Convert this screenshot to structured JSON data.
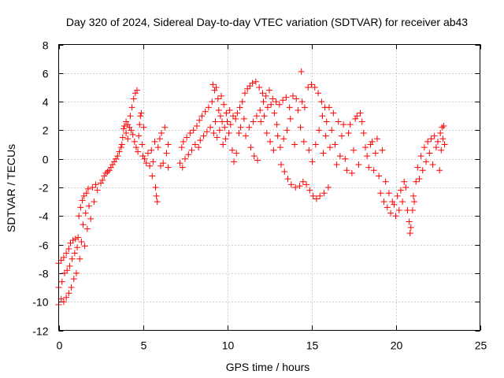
{
  "chart_data": {
    "type": "scatter",
    "title": "Day 320 of 2024, Sidereal Day-to-day VTEC variation (SDTVAR) for receiver ab43",
    "xlabel": "GPS time / hours",
    "ylabel": "SDTVAR / TECUs",
    "xlim": [
      0,
      25
    ],
    "ylim": [
      -12,
      8
    ],
    "xticks": [
      0,
      5,
      10,
      15,
      20,
      25
    ],
    "yticks": [
      -12,
      -10,
      -8,
      -6,
      -4,
      -2,
      0,
      2,
      4,
      6,
      8
    ],
    "xtick_labels": [
      "0",
      "5",
      "10",
      "15",
      "20",
      "25"
    ],
    "ytick_labels": [
      "-12",
      "-10",
      "-8",
      "-6",
      "-4",
      "-2",
      "0",
      "2",
      "4",
      "6",
      "8"
    ],
    "grid": true,
    "legend": "none",
    "marker": "+",
    "color": "#ff0000",
    "series": [
      {
        "name": "SDTVAR",
        "points": [
          [
            0.0,
            -7.3
          ],
          [
            0.0,
            -9.0
          ],
          [
            0.0,
            -10.2
          ],
          [
            0.15,
            -7.1
          ],
          [
            0.15,
            -9.8
          ],
          [
            0.2,
            -8.6
          ],
          [
            0.3,
            -6.9
          ],
          [
            0.3,
            -10.0
          ],
          [
            0.35,
            -8.0
          ],
          [
            0.45,
            -6.6
          ],
          [
            0.45,
            -9.7
          ],
          [
            0.5,
            -7.8
          ],
          [
            0.6,
            -6.3
          ],
          [
            0.6,
            -9.4
          ],
          [
            0.65,
            -7.5
          ],
          [
            0.7,
            -5.9
          ],
          [
            0.75,
            -9.0
          ],
          [
            0.8,
            -7.0
          ],
          [
            0.85,
            -5.7
          ],
          [
            0.9,
            -8.4
          ],
          [
            0.95,
            -6.6
          ],
          [
            1.0,
            -5.6
          ],
          [
            1.05,
            -8.0
          ],
          [
            1.1,
            -6.2
          ],
          [
            1.15,
            -5.5
          ],
          [
            1.2,
            -4.0
          ],
          [
            1.25,
            -7.0
          ],
          [
            1.3,
            -3.4
          ],
          [
            1.35,
            -5.8
          ],
          [
            1.4,
            -2.9
          ],
          [
            1.45,
            -4.6
          ],
          [
            1.5,
            -2.6
          ],
          [
            1.55,
            -6.1
          ],
          [
            1.6,
            -3.8
          ],
          [
            1.65,
            -2.4
          ],
          [
            1.7,
            -4.9
          ],
          [
            1.75,
            -2.1
          ],
          [
            1.8,
            -3.3
          ],
          [
            1.9,
            -4.2
          ],
          [
            2.0,
            -2.0
          ],
          [
            2.1,
            -3.0
          ],
          [
            2.2,
            -1.8
          ],
          [
            2.3,
            -2.2
          ],
          [
            2.5,
            -1.7
          ],
          [
            2.6,
            -1.5
          ],
          [
            2.7,
            -1.2
          ],
          [
            2.8,
            -1.0
          ],
          [
            2.9,
            -0.9
          ],
          [
            3.0,
            -0.8
          ],
          [
            3.1,
            -0.6
          ],
          [
            3.2,
            -0.4
          ],
          [
            3.3,
            -0.2
          ],
          [
            3.4,
            0.0
          ],
          [
            3.5,
            0.2
          ],
          [
            3.6,
            0.5
          ],
          [
            3.7,
            0.8
          ],
          [
            3.75,
            1.0
          ],
          [
            3.8,
            1.5
          ],
          [
            3.85,
            2.1
          ],
          [
            3.9,
            2.3
          ],
          [
            4.0,
            1.8
          ],
          [
            4.0,
            2.6
          ],
          [
            4.1,
            1.4
          ],
          [
            4.1,
            2.4
          ],
          [
            4.2,
            2.2
          ],
          [
            4.25,
            3.0
          ],
          [
            4.3,
            2.0
          ],
          [
            4.35,
            3.6
          ],
          [
            4.4,
            1.7
          ],
          [
            4.45,
            4.2
          ],
          [
            4.5,
            1.2
          ],
          [
            4.55,
            4.6
          ],
          [
            4.6,
            0.8
          ],
          [
            4.65,
            4.8
          ],
          [
            4.7,
            0.5
          ],
          [
            4.75,
            1.6
          ],
          [
            4.8,
            2.4
          ],
          [
            4.85,
            3.0
          ],
          [
            4.9,
            3.2
          ],
          [
            4.95,
            1.0
          ],
          [
            5.0,
            0.2
          ],
          [
            5.05,
            2.2
          ],
          [
            5.1,
            0.0
          ],
          [
            5.2,
            -0.3
          ],
          [
            5.3,
            0.4
          ],
          [
            5.4,
            -0.5
          ],
          [
            5.5,
            0.6
          ],
          [
            5.55,
            -1.2
          ],
          [
            5.6,
            -0.2
          ],
          [
            5.7,
            1.2
          ],
          [
            5.75,
            -2.0
          ],
          [
            5.8,
            -2.6
          ],
          [
            5.85,
            -3.0
          ],
          [
            5.9,
            0.8
          ],
          [
            6.0,
            1.4
          ],
          [
            6.05,
            -0.5
          ],
          [
            6.1,
            1.8
          ],
          [
            6.2,
            -0.3
          ],
          [
            6.3,
            2.2
          ],
          [
            6.4,
            0.4
          ],
          [
            6.5,
            1.0
          ],
          [
            6.5,
            -0.6
          ],
          [
            7.2,
            -0.3
          ],
          [
            7.3,
            0.8
          ],
          [
            7.35,
            -0.6
          ],
          [
            7.4,
            1.2
          ],
          [
            7.5,
            0.0
          ],
          [
            7.6,
            1.5
          ],
          [
            7.7,
            0.3
          ],
          [
            7.8,
            1.8
          ],
          [
            7.9,
            0.6
          ],
          [
            8.0,
            2.0
          ],
          [
            8.1,
            1.0
          ],
          [
            8.2,
            2.3
          ],
          [
            8.3,
            0.8
          ],
          [
            8.35,
            2.7
          ],
          [
            8.4,
            1.3
          ],
          [
            8.5,
            3.0
          ],
          [
            8.6,
            1.6
          ],
          [
            8.7,
            3.3
          ],
          [
            8.8,
            1.9
          ],
          [
            8.9,
            3.6
          ],
          [
            9.0,
            2.2
          ],
          [
            9.1,
            4.0
          ],
          [
            9.15,
            5.2
          ],
          [
            9.2,
            1.8
          ],
          [
            9.25,
            4.8
          ],
          [
            9.3,
            2.6
          ],
          [
            9.35,
            5.0
          ],
          [
            9.4,
            1.5
          ],
          [
            9.45,
            4.2
          ],
          [
            9.5,
            3.4
          ],
          [
            9.55,
            2.0
          ],
          [
            9.6,
            3.0
          ],
          [
            9.65,
            4.4
          ],
          [
            9.7,
            2.6
          ],
          [
            9.75,
            1.0
          ],
          [
            9.8,
            3.8
          ],
          [
            9.85,
            2.2
          ],
          [
            9.9,
            1.4
          ],
          [
            9.95,
            3.2
          ],
          [
            10.0,
            2.6
          ],
          [
            10.1,
            1.8
          ],
          [
            10.15,
            3.4
          ],
          [
            10.2,
            2.4
          ],
          [
            10.3,
            0.6
          ],
          [
            10.35,
            3.0
          ],
          [
            10.4,
            -0.2
          ],
          [
            10.5,
            2.8
          ],
          [
            10.55,
            0.4
          ],
          [
            10.6,
            3.2
          ],
          [
            10.7,
            1.8
          ],
          [
            10.75,
            3.6
          ],
          [
            10.8,
            2.2
          ],
          [
            10.9,
            4.0
          ],
          [
            11.0,
            2.8
          ],
          [
            11.05,
            4.6
          ],
          [
            11.1,
            1.6
          ],
          [
            11.2,
            4.9
          ],
          [
            11.3,
            2.2
          ],
          [
            11.35,
            5.1
          ],
          [
            11.4,
            0.8
          ],
          [
            11.5,
            5.3
          ],
          [
            11.55,
            2.6
          ],
          [
            11.6,
            0.2
          ],
          [
            11.7,
            5.4
          ],
          [
            11.75,
            3.0
          ],
          [
            11.8,
            -0.1
          ],
          [
            11.9,
            5.0
          ],
          [
            11.95,
            3.4
          ],
          [
            12.0,
            2.6
          ],
          [
            12.1,
            4.6
          ],
          [
            12.15,
            4.0
          ],
          [
            12.2,
            3.0
          ],
          [
            12.3,
            4.4
          ],
          [
            12.35,
            1.8
          ],
          [
            12.4,
            3.6
          ],
          [
            12.5,
            4.8
          ],
          [
            12.55,
            1.2
          ],
          [
            12.6,
            3.8
          ],
          [
            12.7,
            4.2
          ],
          [
            12.75,
            0.6
          ],
          [
            12.8,
            3.2
          ],
          [
            12.9,
            4.0
          ],
          [
            12.95,
            2.4
          ],
          [
            13.0,
            1.6
          ],
          [
            13.1,
            3.8
          ],
          [
            13.15,
            0.8
          ],
          [
            13.2,
            -0.4
          ],
          [
            13.3,
            4.1
          ],
          [
            13.35,
            1.4
          ],
          [
            13.4,
            -0.9
          ],
          [
            13.5,
            4.3
          ],
          [
            13.55,
            2.0
          ],
          [
            13.6,
            -1.4
          ],
          [
            13.7,
            3.6
          ],
          [
            13.75,
            2.8
          ],
          [
            13.8,
            -1.8
          ],
          [
            13.9,
            4.4
          ],
          [
            14.0,
            1.0
          ],
          [
            14.05,
            -2.0
          ],
          [
            14.1,
            4.2
          ],
          [
            14.2,
            3.4
          ],
          [
            14.3,
            -1.9
          ],
          [
            14.35,
            2.2
          ],
          [
            14.4,
            6.1
          ],
          [
            14.45,
            4.0
          ],
          [
            14.5,
            -1.6
          ],
          [
            14.55,
            1.2
          ],
          [
            14.6,
            3.6
          ],
          [
            14.7,
            -1.8
          ],
          [
            14.8,
            5.0
          ],
          [
            14.85,
            0.6
          ],
          [
            14.9,
            -2.2
          ],
          [
            15.0,
            5.2
          ],
          [
            15.05,
            -0.2
          ],
          [
            15.1,
            -2.6
          ],
          [
            15.2,
            5.0
          ],
          [
            15.25,
            1.0
          ],
          [
            15.3,
            -2.8
          ],
          [
            15.4,
            4.6
          ],
          [
            15.45,
            2.0
          ],
          [
            15.5,
            -2.6
          ],
          [
            15.6,
            4.0
          ],
          [
            15.65,
            3.0
          ],
          [
            15.7,
            0.4
          ],
          [
            15.75,
            -2.4
          ],
          [
            15.8,
            3.6
          ],
          [
            15.85,
            1.6
          ],
          [
            15.9,
            2.6
          ],
          [
            16.0,
            -2.0
          ],
          [
            16.05,
            3.6
          ],
          [
            16.1,
            0.8
          ],
          [
            16.2,
            2.0
          ],
          [
            16.3,
            3.2
          ],
          [
            16.4,
            1.0
          ],
          [
            16.5,
            -0.4
          ],
          [
            16.6,
            2.6
          ],
          [
            16.7,
            0.2
          ],
          [
            16.8,
            1.6
          ],
          [
            16.9,
            2.4
          ],
          [
            17.0,
            0.0
          ],
          [
            17.1,
            -0.8
          ],
          [
            17.2,
            1.8
          ],
          [
            17.3,
            2.4
          ],
          [
            17.4,
            -1.0
          ],
          [
            17.5,
            0.6
          ],
          [
            17.6,
            2.8
          ],
          [
            17.7,
            3.0
          ],
          [
            17.8,
            -0.4
          ],
          [
            17.9,
            3.2
          ],
          [
            18.0,
            2.6
          ],
          [
            18.1,
            1.8
          ],
          [
            18.2,
            0.8
          ],
          [
            18.3,
            0.2
          ],
          [
            18.4,
            -0.6
          ],
          [
            18.5,
            1.0
          ],
          [
            18.6,
            1.2
          ],
          [
            18.7,
            -0.8
          ],
          [
            18.8,
            0.4
          ],
          [
            18.9,
            1.4
          ],
          [
            19.0,
            -1.2
          ],
          [
            19.1,
            -2.4
          ],
          [
            19.2,
            0.6
          ],
          [
            19.3,
            -3.0
          ],
          [
            19.4,
            -1.6
          ],
          [
            19.5,
            -3.4
          ],
          [
            19.6,
            -2.4
          ],
          [
            19.7,
            -3.8
          ],
          [
            19.8,
            -3.0
          ],
          [
            19.9,
            -3.2
          ],
          [
            20.0,
            -4.0
          ],
          [
            20.1,
            -2.6
          ],
          [
            20.2,
            -3.6
          ],
          [
            20.3,
            -2.2
          ],
          [
            20.4,
            -3.0
          ],
          [
            20.5,
            -1.6
          ],
          [
            20.6,
            -2.0
          ],
          [
            20.7,
            -3.6
          ],
          [
            20.8,
            -4.4
          ],
          [
            20.85,
            -5.2
          ],
          [
            20.9,
            -4.8
          ],
          [
            21.0,
            -3.6
          ],
          [
            21.05,
            -2.6
          ],
          [
            21.1,
            -3.0
          ],
          [
            21.2,
            -1.6
          ],
          [
            21.3,
            -0.6
          ],
          [
            21.4,
            -1.4
          ],
          [
            21.5,
            0.2
          ],
          [
            21.6,
            -0.8
          ],
          [
            21.7,
            0.8
          ],
          [
            21.8,
            -0.2
          ],
          [
            21.9,
            1.2
          ],
          [
            22.0,
            0.4
          ],
          [
            22.1,
            1.4
          ],
          [
            22.2,
            -0.4
          ],
          [
            22.3,
            1.6
          ],
          [
            22.4,
            0.8
          ],
          [
            22.5,
            1.2
          ],
          [
            22.6,
            -0.8
          ],
          [
            22.65,
            1.8
          ],
          [
            22.7,
            0.6
          ],
          [
            22.75,
            2.2
          ],
          [
            22.8,
            1.4
          ],
          [
            22.85,
            2.3
          ],
          [
            22.9,
            1.0
          ]
        ]
      }
    ]
  }
}
